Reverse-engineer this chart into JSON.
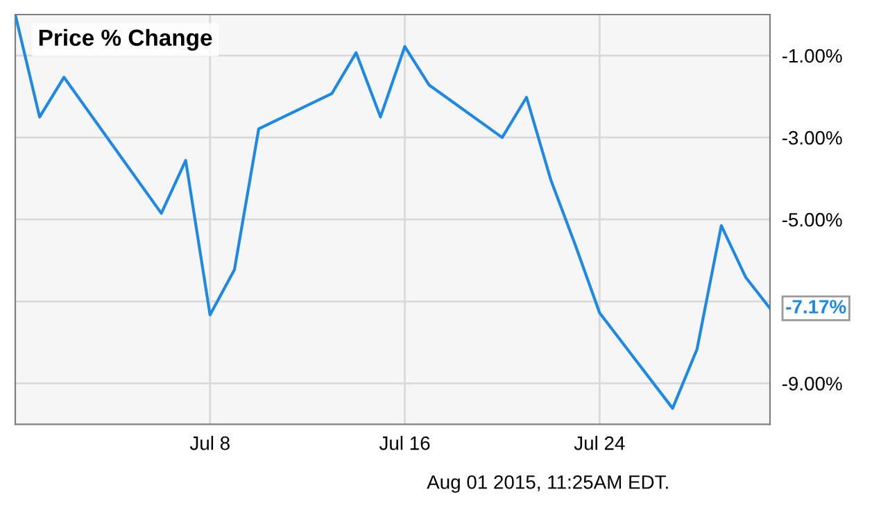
{
  "chart_data": {
    "type": "line",
    "title": "Price % Change",
    "x": [
      "2015-06-30",
      "2015-07-01",
      "2015-07-02",
      "2015-07-06",
      "2015-07-07",
      "2015-07-08",
      "2015-07-09",
      "2015-07-10",
      "2015-07-13",
      "2015-07-14",
      "2015-07-15",
      "2015-07-16",
      "2015-07-17",
      "2015-07-20",
      "2015-07-21",
      "2015-07-22",
      "2015-07-23",
      "2015-07-24",
      "2015-07-27",
      "2015-07-28",
      "2015-07-29",
      "2015-07-30",
      "2015-07-31"
    ],
    "series": [
      {
        "color": "#1e88e5",
        "values": [
          0,
          -2.5,
          -1.53,
          -4.85,
          -3.56,
          -7.33,
          -6.23,
          -2.79,
          -1.93,
          -0.93,
          -2.5,
          -0.78,
          -1.72,
          -3.0,
          -2.02,
          -4.04,
          -5.62,
          -7.28,
          -9.61,
          -8.17,
          -5.15,
          -6.41,
          -7.17
        ]
      }
    ],
    "xlim": [
      "2015-06-30",
      "2015-07-31"
    ],
    "xticks": [
      {
        "value": "2015-07-08",
        "label": "Jul 8"
      },
      {
        "value": "2015-07-16",
        "label": "Jul 16"
      },
      {
        "value": "2015-07-24",
        "label": "Jul 24"
      }
    ],
    "ylim": [
      -10,
      0
    ],
    "yticks": [
      {
        "value": -1,
        "label": "-1.00%"
      },
      {
        "value": -3,
        "label": "-3.00%"
      },
      {
        "value": -5,
        "label": "-5.00%"
      },
      {
        "value": -7,
        "label": null
      },
      {
        "value": -9,
        "label": "-9.00%"
      }
    ],
    "grid": true,
    "legend": false,
    "marker": "none",
    "line_style": "solid",
    "annotations": [
      {
        "text": "-7.17%",
        "x": "2015-07-31",
        "y": -7.17
      },
      "Aug 01 2015, 11:25AM EDT."
    ]
  }
}
